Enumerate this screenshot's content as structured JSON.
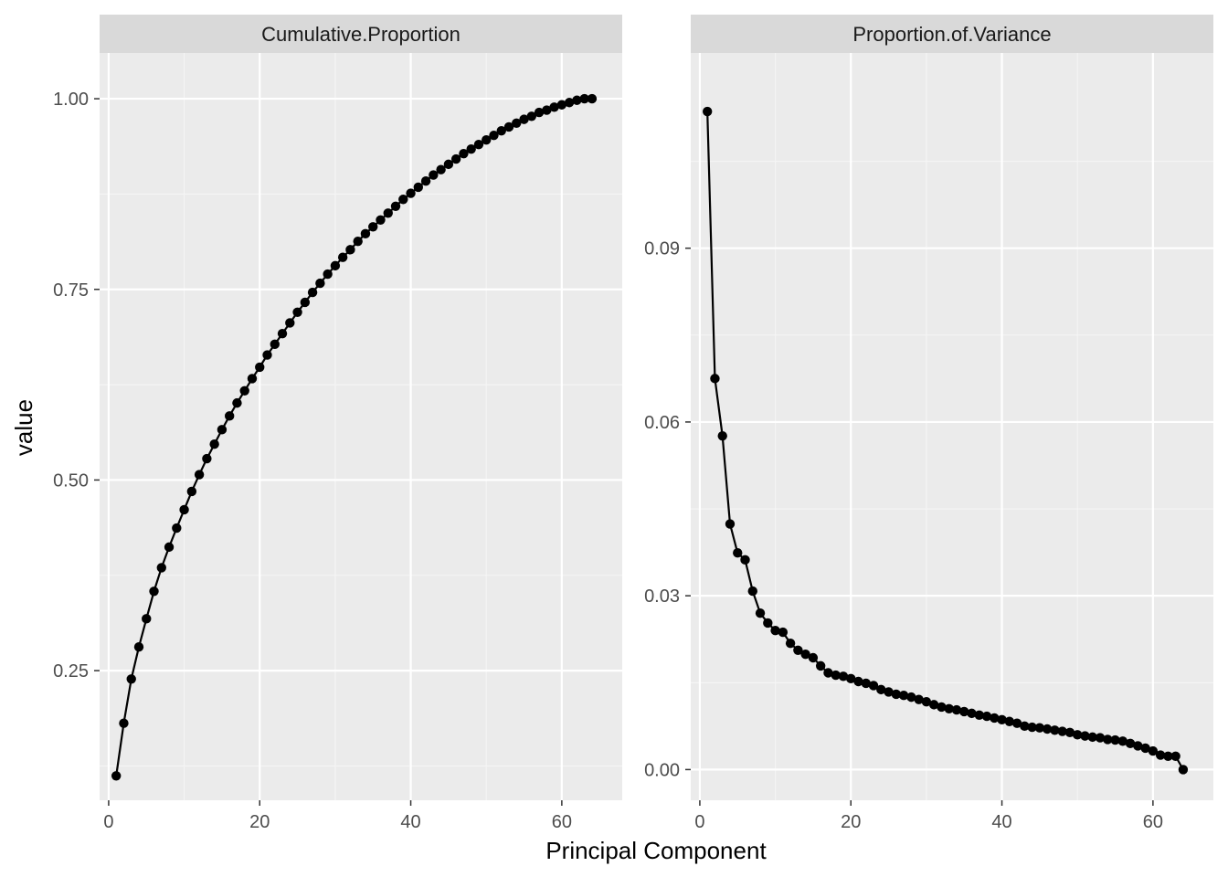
{
  "chart_data": {
    "type": "line",
    "xlabel": "Principal Component",
    "ylabel": "value",
    "facets": [
      {
        "strip_label": "Cumulative.Proportion",
        "xlim": [
          -1.2,
          68.0
        ],
        "ylim": [
          0.08,
          1.06
        ],
        "x_ticks": [
          0,
          20,
          40,
          60
        ],
        "x_tick_labels": [
          "0",
          "20",
          "40",
          "60"
        ],
        "y_ticks": [
          0.25,
          0.5,
          0.75,
          1.0
        ],
        "y_tick_labels": [
          "0.25",
          "0.50",
          "0.75",
          "1.00"
        ],
        "x": [
          1,
          2,
          3,
          4,
          5,
          6,
          7,
          8,
          9,
          10,
          11,
          12,
          13,
          14,
          15,
          16,
          17,
          18,
          19,
          20,
          21,
          22,
          23,
          24,
          25,
          26,
          27,
          28,
          29,
          30,
          31,
          32,
          33,
          34,
          35,
          36,
          37,
          38,
          39,
          40,
          41,
          42,
          43,
          44,
          45,
          46,
          47,
          48,
          49,
          50,
          51,
          52,
          53,
          54,
          55,
          56,
          57,
          58,
          59,
          60,
          61,
          62,
          63,
          64
        ],
        "values": [
          0.112,
          0.181,
          0.239,
          0.281,
          0.318,
          0.354,
          0.385,
          0.412,
          0.437,
          0.461,
          0.485,
          0.507,
          0.528,
          0.547,
          0.566,
          0.584,
          0.601,
          0.617,
          0.633,
          0.648,
          0.664,
          0.678,
          0.692,
          0.706,
          0.72,
          0.733,
          0.746,
          0.758,
          0.77,
          0.781,
          0.792,
          0.802,
          0.813,
          0.823,
          0.832,
          0.841,
          0.85,
          0.859,
          0.868,
          0.876,
          0.884,
          0.892,
          0.9,
          0.907,
          0.914,
          0.921,
          0.928,
          0.934,
          0.94,
          0.946,
          0.952,
          0.958,
          0.963,
          0.968,
          0.973,
          0.977,
          0.982,
          0.985,
          0.989,
          0.992,
          0.995,
          0.998,
          1.0,
          1.0
        ]
      },
      {
        "strip_label": "Proportion.of.Variance",
        "xlim": [
          -1.2,
          68.0
        ],
        "ylim": [
          -0.0053,
          0.1237
        ],
        "x_ticks": [
          0,
          20,
          40,
          60
        ],
        "x_tick_labels": [
          "0",
          "20",
          "40",
          "60"
        ],
        "y_ticks": [
          0.0,
          0.03,
          0.06,
          0.09
        ],
        "y_tick_labels": [
          "0.00",
          "0.03",
          "0.06",
          "0.09"
        ],
        "x": [
          1,
          2,
          3,
          4,
          5,
          6,
          7,
          8,
          9,
          10,
          11,
          12,
          13,
          14,
          15,
          16,
          17,
          18,
          19,
          20,
          21,
          22,
          23,
          24,
          25,
          26,
          27,
          28,
          29,
          30,
          31,
          32,
          33,
          34,
          35,
          36,
          37,
          38,
          39,
          40,
          41,
          42,
          43,
          44,
          45,
          46,
          47,
          48,
          49,
          50,
          51,
          52,
          53,
          54,
          55,
          56,
          57,
          58,
          59,
          60,
          61,
          62,
          63,
          64
        ],
        "values": [
          0.1136,
          0.0675,
          0.0576,
          0.0424,
          0.0374,
          0.0362,
          0.0308,
          0.027,
          0.0253,
          0.024,
          0.0237,
          0.0218,
          0.0206,
          0.0199,
          0.0193,
          0.0179,
          0.0167,
          0.0163,
          0.0161,
          0.0157,
          0.0152,
          0.0149,
          0.0145,
          0.0138,
          0.0134,
          0.013,
          0.0128,
          0.0125,
          0.0121,
          0.0117,
          0.0112,
          0.0108,
          0.0105,
          0.0103,
          0.01,
          0.0097,
          0.0094,
          0.0092,
          0.0089,
          0.0086,
          0.0083,
          0.008,
          0.0075,
          0.0073,
          0.0072,
          0.007,
          0.0068,
          0.0066,
          0.0064,
          0.006,
          0.0058,
          0.0056,
          0.0055,
          0.0052,
          0.0051,
          0.0049,
          0.0045,
          0.0041,
          0.0037,
          0.0032,
          0.0025,
          0.0023,
          0.0023,
          0.0
        ]
      }
    ],
    "colors": {
      "panel_background": "#ebebeb",
      "strip_background": "#d9d9d9",
      "grid_major": "#ffffff",
      "grid_minor": "#f5f5f5",
      "line": "#000000",
      "point": "#000000",
      "tick_mark": "#333333"
    },
    "grid": true,
    "legend": "none"
  }
}
